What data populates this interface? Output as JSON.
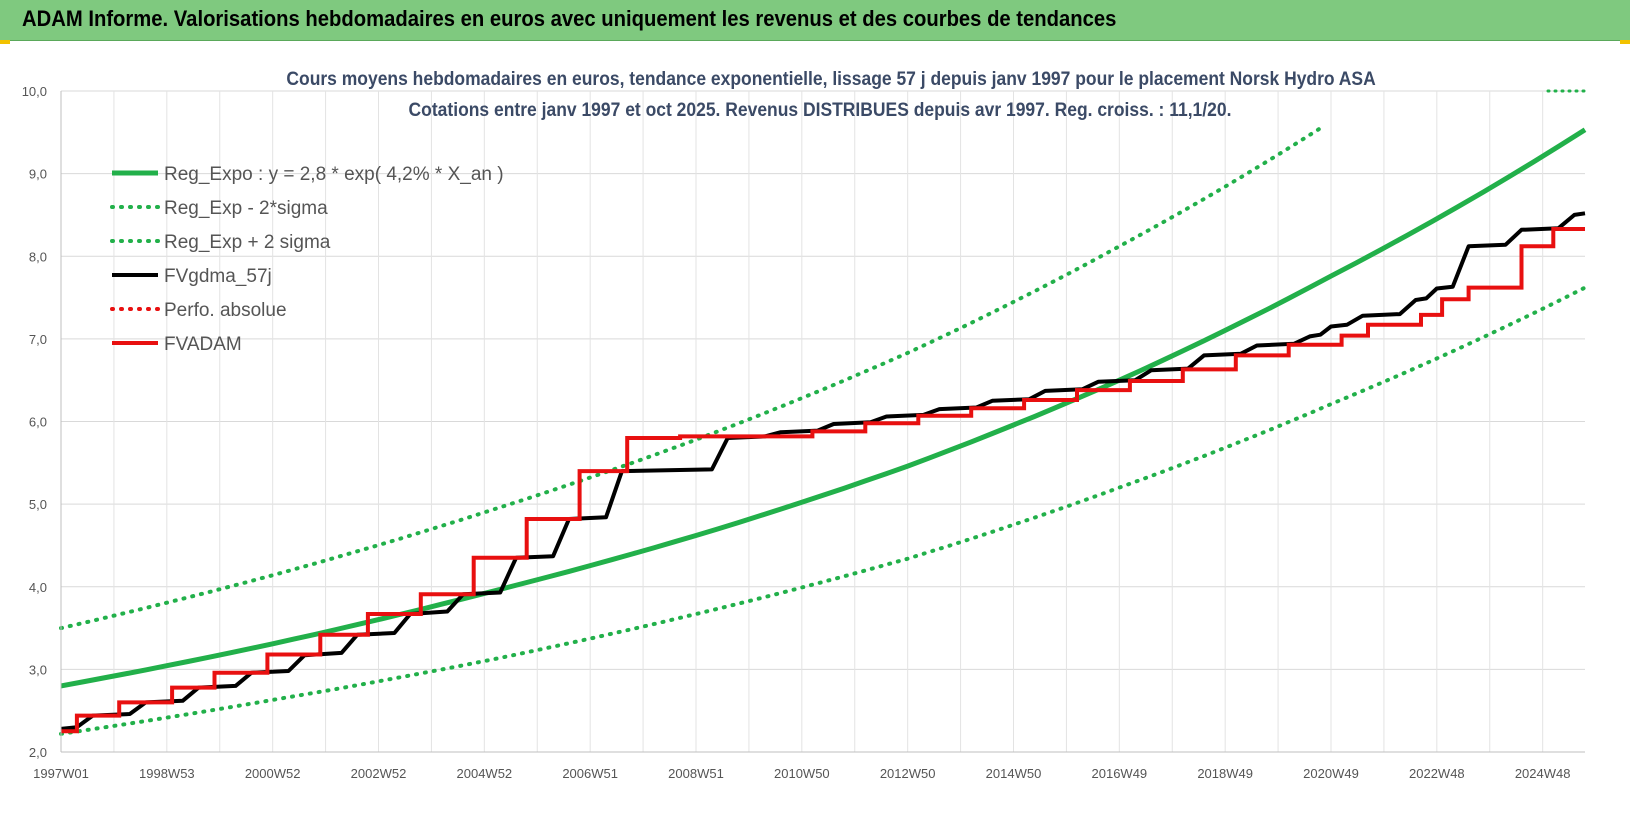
{
  "header": {
    "title": "ADAM Informe. Valorisations hebdomadaires en euros avec uniquement les revenus et des courbes de tendances"
  },
  "chart_data": {
    "type": "line",
    "title": "Cours moyens hebdomadaires en euros, tendance exponentielle, lissage 57 j depuis janv 1997 pour le placement Norsk Hydro ASA",
    "subtitle": "Cotations entre janv 1997 et oct 2025. Revenus DISTRIBUES depuis avr 1997. Reg. croiss. : 11,1/20.",
    "xlabel": "",
    "ylabel": "",
    "x_range": [
      1997.0,
      2025.8
    ],
    "ylim": [
      2.0,
      10.0
    ],
    "y_ticks": [
      "2,0",
      "3,0",
      "4,0",
      "5,0",
      "6,0",
      "7,0",
      "8,0",
      "9,0",
      "10,0"
    ],
    "x_ticks": [
      {
        "label": "1997W01",
        "x": 1997.0
      },
      {
        "label": "1998W53",
        "x": 1999.0
      },
      {
        "label": "2000W52",
        "x": 2001.0
      },
      {
        "label": "2002W52",
        "x": 2003.0
      },
      {
        "label": "2004W52",
        "x": 2005.0
      },
      {
        "label": "2006W51",
        "x": 2007.0
      },
      {
        "label": "2008W51",
        "x": 2009.0
      },
      {
        "label": "2010W50",
        "x": 2011.0
      },
      {
        "label": "2012W50",
        "x": 2013.0
      },
      {
        "label": "2014W50",
        "x": 2015.0
      },
      {
        "label": "2016W49",
        "x": 2017.0
      },
      {
        "label": "2018W49",
        "x": 2019.0
      },
      {
        "label": "2020W49",
        "x": 2021.0
      },
      {
        "label": "2022W48",
        "x": 2023.0
      },
      {
        "label": "2024W48",
        "x": 2025.0
      }
    ],
    "grid": true,
    "legend_position": "top-left",
    "series": [
      {
        "name": "Reg_Expo : y = 2,8 * exp( 4,2% *  X_an )",
        "color": "#22b04a",
        "style": "solid",
        "x": [
          1997.0,
          2001.0,
          2005.0,
          2009.0,
          2013.0,
          2017.0,
          2021.0,
          2025.8
        ],
        "values": [
          2.8,
          3.31,
          3.92,
          4.62,
          5.46,
          6.5,
          7.76,
          9.53
        ]
      },
      {
        "name": "Reg_Exp - 2*sigma",
        "color": "#22b04a",
        "style": "dotted",
        "x": [
          1997.0,
          2001.0,
          2005.0,
          2009.0,
          2013.0,
          2017.0,
          2021.0,
          2025.8
        ],
        "values": [
          2.22,
          2.63,
          3.1,
          3.67,
          4.34,
          5.2,
          6.21,
          7.62
        ]
      },
      {
        "name": "Reg_Exp + 2 sigma",
        "color": "#22b04a",
        "style": "dotted",
        "x": [
          1997.0,
          2001.0,
          2005.0,
          2009.0,
          2013.0,
          2017.0,
          2020.8
        ],
        "values": [
          3.5,
          4.14,
          4.9,
          5.78,
          6.83,
          8.12,
          9.55
        ]
      },
      {
        "name": "FVgdma_57j",
        "color": "#000000",
        "style": "solid",
        "x": [
          1997.0,
          1997.3,
          1997.6,
          1998.3,
          1998.6,
          1999.3,
          1999.6,
          2000.3,
          2000.6,
          2001.3,
          2001.6,
          2002.3,
          2002.6,
          2003.3,
          2003.6,
          2004.3,
          2004.6,
          2005.3,
          2005.6,
          2006.3,
          2006.6,
          2007.3,
          2007.6,
          2009.3,
          2009.6,
          2010.3,
          2010.6,
          2011.3,
          2011.6,
          2012.3,
          2012.6,
          2013.3,
          2013.6,
          2014.3,
          2014.6,
          2015.3,
          2015.6,
          2016.3,
          2016.6,
          2017.3,
          2017.6,
          2018.3,
          2018.6,
          2019.3,
          2019.6,
          2020.3,
          2020.6,
          2020.8,
          2021.0,
          2021.3,
          2021.6,
          2022.3,
          2022.6,
          2022.8,
          2023.0,
          2023.3,
          2023.6,
          2024.3,
          2024.6,
          2025.3,
          2025.6,
          2025.8
        ],
        "values": [
          2.28,
          2.3,
          2.44,
          2.46,
          2.6,
          2.62,
          2.78,
          2.8,
          2.96,
          2.98,
          3.17,
          3.2,
          3.42,
          3.44,
          3.67,
          3.7,
          3.91,
          3.93,
          4.35,
          4.37,
          4.82,
          4.84,
          5.4,
          5.42,
          5.8,
          5.82,
          5.87,
          5.89,
          5.97,
          5.99,
          6.06,
          6.08,
          6.15,
          6.17,
          6.25,
          6.27,
          6.37,
          6.39,
          6.48,
          6.5,
          6.62,
          6.64,
          6.8,
          6.82,
          6.92,
          6.94,
          7.03,
          7.05,
          7.15,
          7.17,
          7.28,
          7.3,
          7.47,
          7.49,
          7.61,
          7.63,
          8.12,
          8.14,
          8.32,
          8.34,
          8.5,
          8.52
        ]
      },
      {
        "name": "Perfo. absolue",
        "color": "#e81010",
        "style": "dotted",
        "x": [],
        "values": []
      },
      {
        "name": "FVADAM",
        "color": "#e81010",
        "style": "solid",
        "x": [
          1997.0,
          1997.3,
          1997.3,
          1998.1,
          1998.1,
          1999.1,
          1999.1,
          1999.9,
          1999.9,
          2000.9,
          2000.9,
          2001.9,
          2001.9,
          2002.8,
          2002.8,
          2003.8,
          2003.8,
          2004.8,
          2004.8,
          2005.8,
          2005.8,
          2006.8,
          2006.8,
          2007.7,
          2007.7,
          2008.7,
          2008.7,
          2011.2,
          2011.2,
          2012.2,
          2012.2,
          2013.2,
          2013.2,
          2014.2,
          2014.2,
          2015.2,
          2015.2,
          2016.2,
          2016.2,
          2017.2,
          2017.2,
          2018.2,
          2018.2,
          2019.2,
          2019.2,
          2020.2,
          2020.2,
          2021.2,
          2021.2,
          2021.7,
          2021.7,
          2022.7,
          2022.7,
          2023.1,
          2023.1,
          2023.6,
          2023.6,
          2024.6,
          2024.6,
          2025.2,
          2025.2,
          2025.8
        ],
        "values": [
          2.25,
          2.25,
          2.44,
          2.44,
          2.6,
          2.6,
          2.78,
          2.78,
          2.96,
          2.96,
          3.18,
          3.18,
          3.42,
          3.42,
          3.67,
          3.67,
          3.91,
          3.91,
          4.35,
          4.35,
          4.82,
          4.82,
          5.4,
          5.4,
          5.8,
          5.8,
          5.82,
          5.82,
          5.88,
          5.88,
          5.98,
          5.98,
          6.07,
          6.07,
          6.16,
          6.16,
          6.26,
          6.26,
          6.38,
          6.38,
          6.49,
          6.49,
          6.63,
          6.63,
          6.8,
          6.8,
          6.93,
          6.93,
          7.04,
          7.04,
          7.17,
          7.17,
          7.29,
          7.29,
          7.48,
          7.48,
          7.62,
          7.62,
          8.12,
          8.12,
          8.33,
          8.33
        ]
      }
    ],
    "extra_segment": {
      "color": "#22b04a",
      "style": "dotted",
      "x": [
        2025.1,
        2025.8
      ],
      "values": [
        10.0,
        10.0
      ]
    }
  }
}
